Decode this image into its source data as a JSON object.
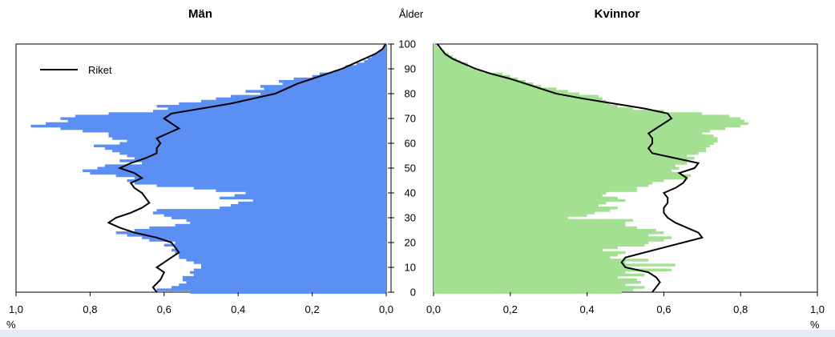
{
  "chart_data": {
    "type": "bar",
    "orientation": "horizontal-population-pyramid",
    "center_axis_label": "Ålder",
    "age_ticks": [
      "0",
      "10",
      "20",
      "30",
      "40",
      "50",
      "60",
      "70",
      "80",
      "90",
      "100"
    ],
    "legend": {
      "label": "Riket",
      "placement": "top-left"
    },
    "unit_label_left": "%",
    "unit_label_right": "%",
    "panels": [
      {
        "key": "men",
        "title": "Män",
        "color": "#5b8ff3",
        "xlim": [
          1.0,
          0.0
        ],
        "x_ticks": [
          "1,0",
          "0,8",
          "0,6",
          "0,4",
          "0,2",
          "0,0"
        ],
        "bar_ages": [
          0,
          1,
          2,
          3,
          4,
          5,
          6,
          7,
          8,
          9,
          10,
          11,
          12,
          13,
          14,
          15,
          16,
          17,
          18,
          19,
          20,
          21,
          22,
          23,
          24,
          25,
          26,
          27,
          28,
          29,
          30,
          31,
          32,
          33,
          34,
          35,
          36,
          37,
          38,
          39,
          40,
          41,
          42,
          43,
          44,
          45,
          46,
          47,
          48,
          49,
          50,
          51,
          52,
          53,
          54,
          55,
          56,
          57,
          58,
          59,
          60,
          61,
          62,
          63,
          64,
          65,
          66,
          67,
          68,
          69,
          70,
          71,
          72,
          73,
          74,
          75,
          76,
          77,
          78,
          79,
          80,
          81,
          82,
          83,
          84,
          85,
          86,
          87,
          88,
          89,
          90,
          91,
          92,
          93,
          94,
          95,
          96,
          97,
          98,
          99,
          100
        ],
        "bar_values": [
          0.53,
          0.62,
          0.58,
          0.56,
          0.54,
          0.55,
          0.55,
          0.52,
          0.53,
          0.52,
          0.5,
          0.5,
          0.52,
          0.54,
          0.56,
          0.56,
          0.57,
          0.58,
          0.57,
          0.6,
          0.57,
          0.64,
          0.66,
          0.7,
          0.73,
          0.68,
          0.64,
          0.57,
          0.53,
          0.54,
          0.58,
          0.6,
          0.63,
          0.62,
          0.45,
          0.42,
          0.4,
          0.36,
          0.45,
          0.41,
          0.38,
          0.46,
          0.52,
          0.62,
          0.68,
          0.7,
          0.68,
          0.73,
          0.8,
          0.82,
          0.78,
          0.76,
          0.66,
          0.72,
          0.68,
          0.7,
          0.72,
          0.74,
          0.76,
          0.79,
          0.72,
          0.7,
          0.74,
          0.75,
          0.75,
          0.82,
          0.88,
          0.96,
          0.92,
          0.86,
          0.88,
          0.84,
          0.75,
          0.63,
          0.59,
          0.62,
          0.56,
          0.5,
          0.46,
          0.42,
          0.34,
          0.38,
          0.33,
          0.34,
          0.28,
          0.29,
          0.25,
          0.2,
          0.18,
          0.14,
          0.12,
          0.11,
          0.08,
          0.06,
          0.05,
          0.04,
          0.03,
          0.02,
          0.01,
          0.005,
          0.003
        ],
        "riket_ages": [
          0,
          2,
          5,
          8,
          10,
          12,
          14,
          16,
          18,
          20,
          22,
          24,
          26,
          28,
          30,
          32,
          34,
          36,
          38,
          40,
          42,
          44,
          46,
          48,
          50,
          52,
          54,
          56,
          58,
          60,
          62,
          64,
          66,
          68,
          70,
          72,
          74,
          76,
          78,
          80,
          82,
          84,
          86,
          88,
          90,
          92,
          94,
          96,
          98,
          100
        ],
        "riket_values": [
          0.62,
          0.63,
          0.61,
          0.6,
          0.62,
          0.6,
          0.58,
          0.56,
          0.57,
          0.58,
          0.62,
          0.68,
          0.72,
          0.75,
          0.73,
          0.69,
          0.66,
          0.64,
          0.65,
          0.66,
          0.68,
          0.69,
          0.66,
          0.68,
          0.72,
          0.69,
          0.65,
          0.62,
          0.62,
          0.61,
          0.62,
          0.59,
          0.56,
          0.58,
          0.6,
          0.58,
          0.5,
          0.42,
          0.36,
          0.3,
          0.27,
          0.24,
          0.2,
          0.16,
          0.12,
          0.09,
          0.06,
          0.03,
          0.01,
          0.002
        ]
      },
      {
        "key": "women",
        "title": "Kvinnor",
        "color": "#a3e092",
        "xlim": [
          0.0,
          1.0
        ],
        "x_ticks": [
          "0,0",
          "0,2",
          "0,4",
          "0,6",
          "0,8",
          "1,0"
        ],
        "bar_ages": [
          0,
          1,
          2,
          3,
          4,
          5,
          6,
          7,
          8,
          9,
          10,
          11,
          12,
          13,
          14,
          15,
          16,
          17,
          18,
          19,
          20,
          21,
          22,
          23,
          24,
          25,
          26,
          27,
          28,
          29,
          30,
          31,
          32,
          33,
          34,
          35,
          36,
          37,
          38,
          39,
          40,
          41,
          42,
          43,
          44,
          45,
          46,
          47,
          48,
          49,
          50,
          51,
          52,
          53,
          54,
          55,
          56,
          57,
          58,
          59,
          60,
          61,
          62,
          63,
          64,
          65,
          66,
          67,
          68,
          69,
          70,
          71,
          72,
          73,
          74,
          75,
          76,
          77,
          78,
          79,
          80,
          81,
          82,
          83,
          84,
          85,
          86,
          87,
          88,
          89,
          90,
          91,
          92,
          93,
          94,
          95,
          96,
          97,
          98,
          99,
          100
        ],
        "bar_values": [
          0.49,
          0.52,
          0.55,
          0.5,
          0.54,
          0.53,
          0.48,
          0.55,
          0.5,
          0.62,
          0.5,
          0.63,
          0.5,
          0.56,
          0.46,
          0.48,
          0.5,
          0.44,
          0.48,
          0.55,
          0.56,
          0.6,
          0.62,
          0.56,
          0.6,
          0.58,
          0.53,
          0.5,
          0.5,
          0.52,
          0.35,
          0.4,
          0.42,
          0.46,
          0.48,
          0.43,
          0.45,
          0.5,
          0.48,
          0.44,
          0.45,
          0.53,
          0.53,
          0.56,
          0.57,
          0.6,
          0.66,
          0.67,
          0.64,
          0.62,
          0.64,
          0.63,
          0.66,
          0.66,
          0.68,
          0.66,
          0.69,
          0.71,
          0.71,
          0.72,
          0.73,
          0.74,
          0.74,
          0.73,
          0.7,
          0.72,
          0.76,
          0.8,
          0.82,
          0.81,
          0.8,
          0.77,
          0.7,
          0.6,
          0.52,
          0.48,
          0.46,
          0.45,
          0.44,
          0.43,
          0.38,
          0.35,
          0.32,
          0.28,
          0.26,
          0.24,
          0.22,
          0.2,
          0.18,
          0.13,
          0.11,
          0.09,
          0.09,
          0.07,
          0.06,
          0.05,
          0.04,
          0.03,
          0.02,
          0.01,
          0.005
        ],
        "riket_ages": [
          0,
          2,
          4,
          6,
          8,
          10,
          12,
          14,
          16,
          18,
          20,
          22,
          24,
          26,
          28,
          30,
          32,
          34,
          36,
          38,
          40,
          42,
          44,
          46,
          48,
          50,
          52,
          54,
          56,
          58,
          60,
          62,
          64,
          66,
          68,
          70,
          72,
          74,
          76,
          78,
          80,
          82,
          84,
          86,
          88,
          90,
          92,
          94,
          96,
          98,
          100
        ],
        "riket_values": [
          0.57,
          0.58,
          0.59,
          0.58,
          0.56,
          0.5,
          0.49,
          0.5,
          0.55,
          0.6,
          0.65,
          0.7,
          0.69,
          0.66,
          0.63,
          0.61,
          0.6,
          0.6,
          0.61,
          0.61,
          0.6,
          0.63,
          0.65,
          0.66,
          0.64,
          0.68,
          0.69,
          0.63,
          0.57,
          0.56,
          0.57,
          0.57,
          0.56,
          0.58,
          0.6,
          0.62,
          0.61,
          0.55,
          0.47,
          0.39,
          0.32,
          0.28,
          0.24,
          0.2,
          0.15,
          0.11,
          0.08,
          0.05,
          0.03,
          0.02,
          0.01
        ]
      }
    ]
  }
}
